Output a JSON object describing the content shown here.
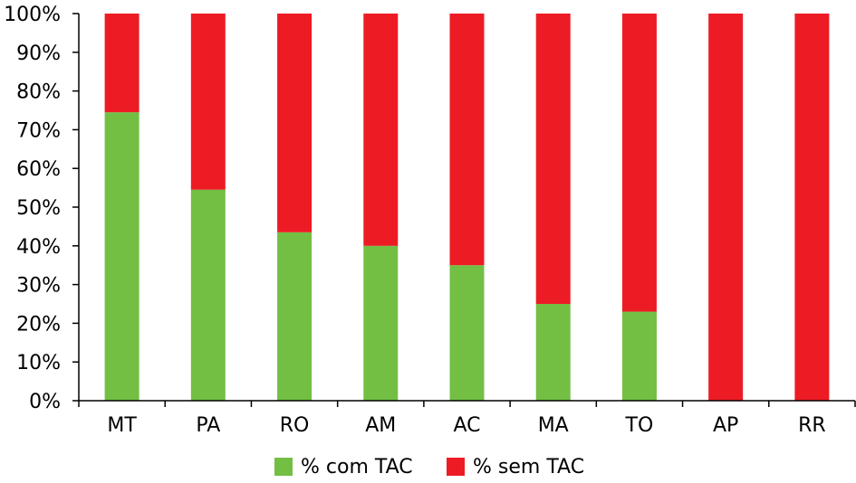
{
  "chart_data": {
    "type": "bar",
    "stacked": true,
    "categories": [
      "MT",
      "PA",
      "RO",
      "AM",
      "AC",
      "MA",
      "TO",
      "AP",
      "RR"
    ],
    "series": [
      {
        "name": "% com TAC",
        "color": "#72BF44",
        "values": [
          74.5,
          54.5,
          43.5,
          40,
          35,
          25,
          23,
          0,
          0
        ]
      },
      {
        "name": "% sem TAC",
        "color": "#ED1C24",
        "values": [
          25.5,
          45.5,
          56.5,
          60,
          65,
          75,
          77,
          100,
          100
        ]
      }
    ],
    "yticks": [
      "0%",
      "10%",
      "20%",
      "30%",
      "40%",
      "50%",
      "60%",
      "70%",
      "80%",
      "90%",
      "100%"
    ],
    "ylim": [
      0,
      100
    ],
    "grid": false,
    "legend_position": "bottom"
  }
}
